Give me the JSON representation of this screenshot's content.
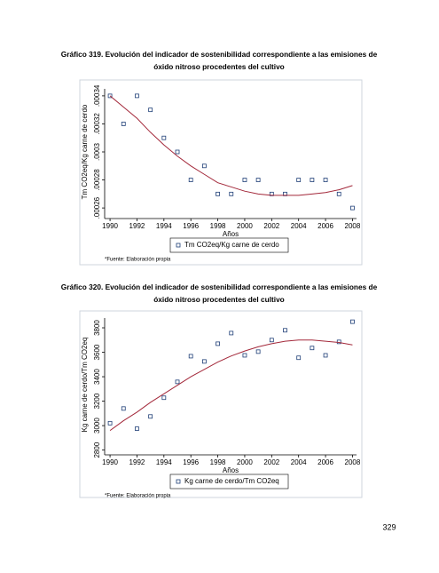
{
  "chart_data": [
    {
      "type": "scatter",
      "title": [
        "Gráfico 319. Evolución del indicador de sostenibilidad correspondiente a las emisiones de",
        "óxido nitroso procedentes del cultivo"
      ],
      "xlabel": "Años",
      "ylabel": "Tm CO2eq/Kg carne de cerdo",
      "note": "*Fuente: Elaboración propia",
      "x": [
        1990,
        1991,
        1992,
        1993,
        1994,
        1995,
        1996,
        1997,
        1998,
        1999,
        2000,
        2001,
        2002,
        2003,
        2004,
        2005,
        2006,
        2007,
        2008
      ],
      "xlim": [
        1989.6,
        2008.3
      ],
      "xticks": [
        1990,
        1992,
        1994,
        1996,
        1998,
        2000,
        2002,
        2004,
        2006,
        2008
      ],
      "ylim": [
        0.000255,
        0.000345
      ],
      "yticks": [
        {
          "value": 0.00026,
          "label": ".00026"
        },
        {
          "value": 0.00028,
          "label": ".00028"
        },
        {
          "value": 0.0003,
          "label": ".0003"
        },
        {
          "value": 0.00032,
          "label": ".00032"
        },
        {
          "value": 0.00034,
          "label": ".00034"
        }
      ],
      "series": [
        {
          "name": "Tm CO2eq/Kg carne de cerdo",
          "type": "scatter",
          "color": "#1f3f77",
          "values": [
            0.00034,
            0.00032,
            0.00034,
            0.00033,
            0.00031,
            0.0003,
            0.00028,
            0.00029,
            0.00027,
            0.00027,
            0.00028,
            0.00028,
            0.00027,
            0.00027,
            0.00028,
            0.00028,
            0.00028,
            0.00027,
            0.00026
          ]
        },
        {
          "type": "line",
          "color": "#a3283a",
          "values": [
            0.00034,
            0.000332,
            0.000324,
            0.000314,
            0.000305,
            0.000297,
            0.00029,
            0.000284,
            0.000278,
            0.000275,
            0.000272,
            0.00027,
            0.000269,
            0.000269,
            0.000269,
            0.00027,
            0.000271,
            0.000273,
            0.000276
          ]
        }
      ]
    },
    {
      "type": "scatter",
      "title": [
        "Gráfico 320. Evolución del indicador de sostenibilidad correspondiente a las emisiones de",
        "óxido nitroso procedentes del cultivo"
      ],
      "xlabel": "Años",
      "ylabel": "Kg carne de cerdo/Tm CO2eq",
      "note": "*Fuente: Elaboración propia",
      "x": [
        1990,
        1991,
        1992,
        1993,
        1994,
        1995,
        1996,
        1997,
        1998,
        1999,
        2000,
        2001,
        2002,
        2003,
        2004,
        2005,
        2006,
        2007,
        2008
      ],
      "xlim": [
        1989.6,
        2008.3
      ],
      "xticks": [
        1990,
        1992,
        1994,
        1996,
        1998,
        2000,
        2002,
        2004,
        2006,
        2008
      ],
      "ylim": [
        2790,
        3880
      ],
      "yticks": [
        2800,
        3000,
        3200,
        3400,
        3600,
        3800
      ],
      "series": [
        {
          "name": "Kg carne de cerdo/Tm CO2eq",
          "type": "scatter",
          "color": "#1f3f77",
          "values": [
            3020,
            3140,
            2975,
            3075,
            3228,
            3358,
            3568,
            3525,
            3670,
            3757,
            3575,
            3605,
            3700,
            3780,
            3555,
            3635,
            3575,
            3685,
            3850
          ]
        },
        {
          "type": "line",
          "color": "#a3283a",
          "values": [
            2960,
            3040,
            3110,
            3190,
            3260,
            3330,
            3400,
            3460,
            3520,
            3570,
            3610,
            3645,
            3670,
            3690,
            3700,
            3700,
            3690,
            3680,
            3660
          ]
        }
      ]
    }
  ],
  "page_number": "329"
}
